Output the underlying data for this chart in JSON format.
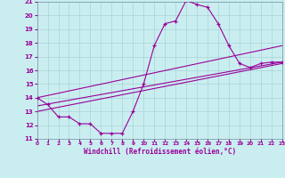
{
  "xlabel": "Windchill (Refroidissement éolien,°C)",
  "xlim": [
    0,
    23
  ],
  "ylim": [
    11,
    21
  ],
  "xticks": [
    0,
    1,
    2,
    3,
    4,
    5,
    6,
    7,
    8,
    9,
    10,
    11,
    12,
    13,
    14,
    15,
    16,
    17,
    18,
    19,
    20,
    21,
    22,
    23
  ],
  "yticks": [
    11,
    12,
    13,
    14,
    15,
    16,
    17,
    18,
    19,
    20,
    21
  ],
  "bg_color": "#caeef0",
  "grid_color": "#a8d4d8",
  "line_color": "#990099",
  "line1_x": [
    0,
    1,
    2,
    3,
    4,
    5,
    6,
    7,
    8,
    9,
    10,
    11,
    12,
    13,
    14,
    15,
    16,
    17,
    18,
    19,
    20,
    21,
    22,
    23
  ],
  "line1_y": [
    14.0,
    13.5,
    12.6,
    12.6,
    12.1,
    12.1,
    11.4,
    11.4,
    11.4,
    13.0,
    15.0,
    17.8,
    19.4,
    19.6,
    21.1,
    20.8,
    20.6,
    19.4,
    17.8,
    16.5,
    16.2,
    16.5,
    16.6,
    16.6
  ],
  "line2_x": [
    0,
    23
  ],
  "line2_y": [
    13.0,
    16.5
  ],
  "line3_x": [
    0,
    23
  ],
  "line3_y": [
    13.4,
    16.6
  ],
  "line4_x": [
    0,
    23
  ],
  "line4_y": [
    14.0,
    17.8
  ]
}
